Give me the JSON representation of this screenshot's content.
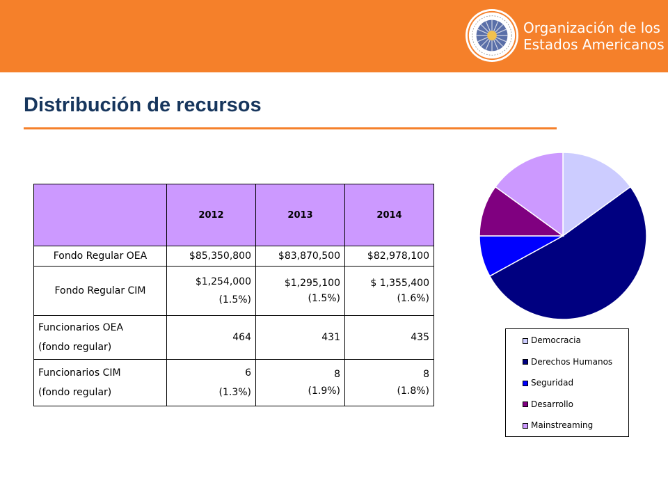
{
  "header": {
    "org_line1": "Organización de los",
    "org_line2": "Estados Americanos"
  },
  "title": "Distribución de recursos",
  "table": {
    "headers": [
      "",
      "2012",
      "2013",
      "2014"
    ],
    "rows": [
      {
        "label": [
          "Fondo Regular OEA"
        ],
        "values": [
          [
            "$85,350,800"
          ],
          [
            "$83,870,500"
          ],
          [
            "$82,978,100"
          ]
        ]
      },
      {
        "label": [
          "Fondo Regular CIM"
        ],
        "values": [
          [
            "$1,254,000",
            "(1.5%)"
          ],
          [
            "$1,295,100",
            "(1.5%)"
          ],
          [
            "$ 1,355,400",
            "(1.6%)"
          ]
        ]
      },
      {
        "label": [
          "Funcionarios OEA",
          "(fondo regular)"
        ],
        "values": [
          [
            "464"
          ],
          [
            "431"
          ],
          [
            "435"
          ]
        ]
      },
      {
        "label": [
          "Funcionarios CIM",
          "(fondo regular)"
        ],
        "values": [
          [
            "6",
            "(1.3%)"
          ],
          [
            "8",
            "(1.9%)"
          ],
          [
            "8",
            "(1.8%)"
          ]
        ]
      }
    ]
  },
  "chart_data": {
    "type": "pie",
    "categories": [
      "Democracia",
      "Derechos Humanos",
      "Seguridad",
      "Desarrollo",
      "Mainstreaming"
    ],
    "values": [
      15,
      52,
      8,
      10,
      15
    ],
    "colors": [
      "#ccccff",
      "#000080",
      "#0000ff",
      "#800080",
      "#cc99ff"
    ],
    "legend_position": "bottom"
  }
}
